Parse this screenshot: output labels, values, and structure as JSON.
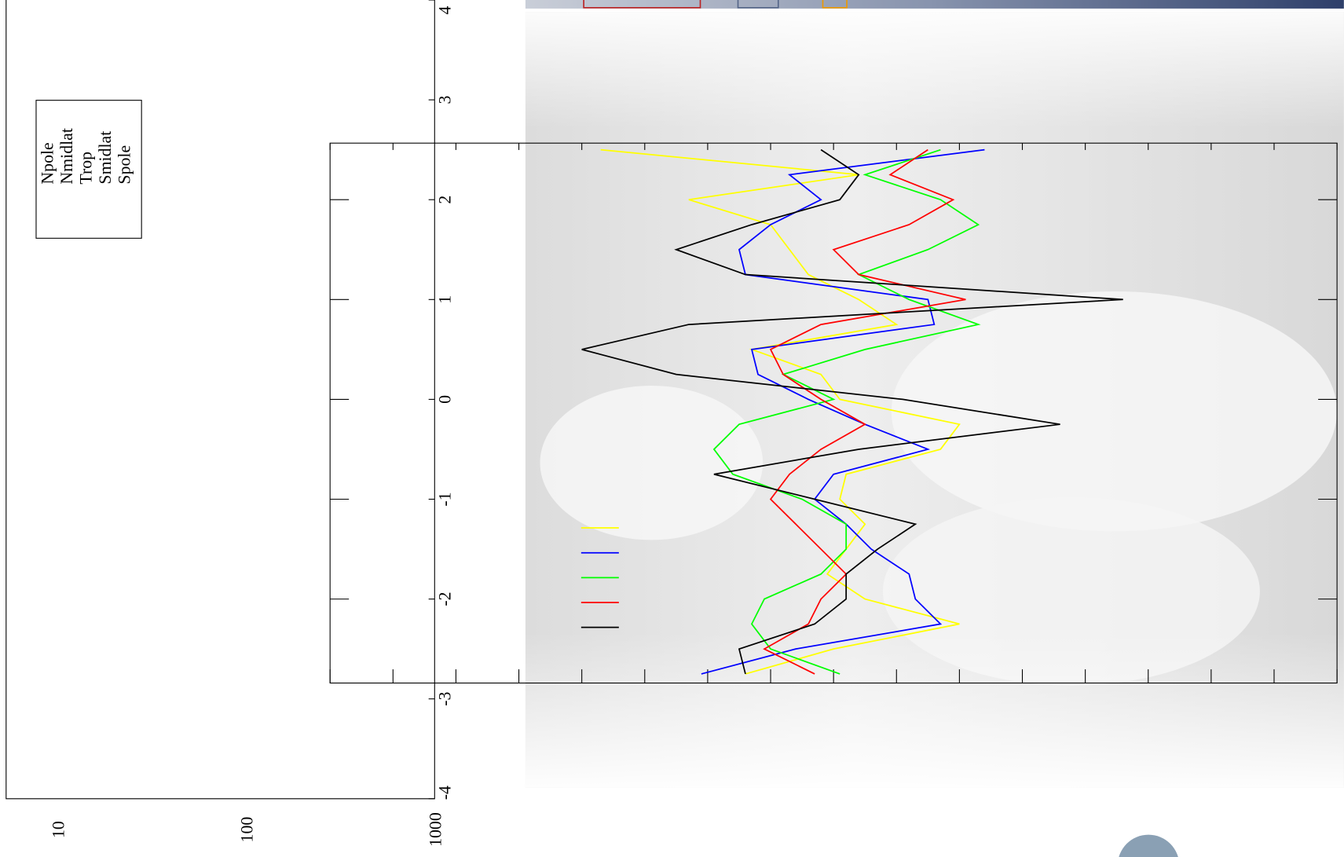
{
  "chart_data": {
    "type": "line",
    "x": [
      2.5,
      2.25,
      2.0,
      1.75,
      1.5,
      1.25,
      1.0,
      0.75,
      0.5,
      0.25,
      0,
      -0.25,
      -0.5,
      -0.75,
      -1,
      -1.25,
      -1.5,
      -1.75,
      -2,
      -2.25,
      -2.5,
      -2.75
    ],
    "xlim": [
      -4,
      4
    ],
    "xticks": [
      -4,
      -3,
      -2,
      -1,
      0,
      1,
      2,
      3,
      4
    ],
    "ylim": [
      0,
      16
    ],
    "yticks": [
      0,
      1,
      2,
      3,
      4,
      5,
      6,
      7,
      8,
      9,
      10,
      11,
      12,
      13,
      14,
      15,
      16
    ],
    "y2lim": [
      10,
      1000
    ],
    "y2ticks": [
      10,
      100,
      1000
    ],
    "y2_log": true,
    "series": [
      {
        "name": "Npole",
        "color": "#ffff00",
        "values": [
          4.3,
          8.4,
          5.7,
          7.0,
          7.3,
          7.6,
          8.4,
          9.0,
          6.7,
          7.8,
          8.1,
          10.0,
          9.7,
          8.2,
          8.1,
          8.5,
          8.2,
          7.9,
          8.5,
          10.0,
          8.0,
          6.6
        ]
      },
      {
        "name": "Nmidlat",
        "color": "#0000ff",
        "values": [
          10.4,
          7.3,
          7.8,
          7.0,
          6.5,
          6.6,
          9.5,
          9.6,
          6.7,
          6.8,
          7.6,
          8.5,
          9.5,
          8.0,
          7.7,
          8.2,
          8.6,
          9.2,
          9.3,
          9.7,
          7.4,
          5.9
        ]
      },
      {
        "name": "Trop",
        "color": "#00ff00",
        "values": [
          9.7,
          8.5,
          9.7,
          10.3,
          9.5,
          8.4,
          9.2,
          10.3,
          8.5,
          7.2,
          8.0,
          6.5,
          6.1,
          6.4,
          7.5,
          8.2,
          8.2,
          7.8,
          6.9,
          6.7,
          7.0,
          8.1
        ]
      },
      {
        "name": "Smidlat",
        "color": "#ff0000",
        "values": [
          9.5,
          8.9,
          9.9,
          9.2,
          8.0,
          8.4,
          10.1,
          7.8,
          7.0,
          7.2,
          7.8,
          8.5,
          7.8,
          7.3,
          7.0,
          7.4,
          7.8,
          8.2,
          7.8,
          7.6,
          6.9,
          7.7
        ]
      },
      {
        "name": "Spole",
        "color": "#000000",
        "values": [
          7.8,
          8.4,
          8.1,
          6.7,
          5.5,
          6.6,
          12.6,
          5.7,
          4.0,
          5.5,
          9.1,
          11.6,
          8.4,
          6.1,
          7.7,
          9.3,
          8.7,
          8.2,
          8.2,
          7.7,
          6.5,
          6.6
        ]
      }
    ]
  }
}
